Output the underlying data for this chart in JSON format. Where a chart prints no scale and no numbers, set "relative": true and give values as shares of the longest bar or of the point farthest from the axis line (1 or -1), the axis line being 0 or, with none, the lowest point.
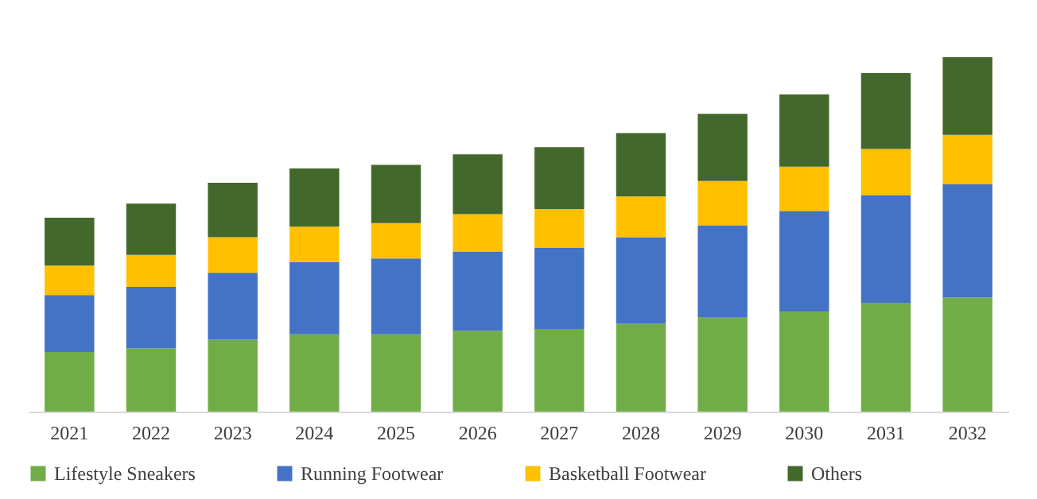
{
  "chart_data": {
    "type": "bar",
    "stacked": true,
    "relative": true,
    "legend": "bottom",
    "grid": false,
    "categories": [
      "2021",
      "2022",
      "2023",
      "2024",
      "2025",
      "2026",
      "2027",
      "2028",
      "2029",
      "2030",
      "2031",
      "2032"
    ],
    "series": [
      {
        "name": "Lifestyle Sneakers",
        "color": "#70ad47",
        "values": [
          0.168,
          0.178,
          0.203,
          0.218,
          0.218,
          0.228,
          0.233,
          0.248,
          0.267,
          0.282,
          0.307,
          0.322
        ]
      },
      {
        "name": "Running Footwear",
        "color": "#4472c4",
        "values": [
          0.161,
          0.174,
          0.189,
          0.204,
          0.214,
          0.224,
          0.229,
          0.244,
          0.259,
          0.284,
          0.304,
          0.319
        ]
      },
      {
        "name": "Basketball Footwear",
        "color": "#ffc000",
        "values": [
          0.083,
          0.09,
          0.1,
          0.1,
          0.1,
          0.105,
          0.11,
          0.115,
          0.125,
          0.125,
          0.13,
          0.14
        ]
      },
      {
        "name": "Others",
        "color": "#43682b",
        "values": [
          0.135,
          0.145,
          0.154,
          0.164,
          0.164,
          0.169,
          0.174,
          0.179,
          0.189,
          0.204,
          0.214,
          0.219
        ]
      }
    ]
  }
}
